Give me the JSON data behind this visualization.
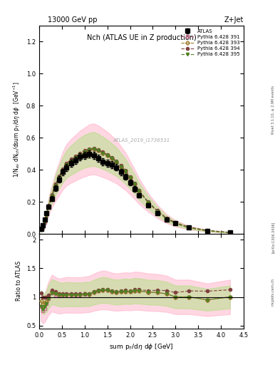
{
  "title_left": "13000 GeV pp",
  "title_right": "Z+Jet",
  "plot_title": "Nch (ATLAS UE in Z production)",
  "xlabel": "sum p_{T}/dη dϕ [GeV]",
  "ylabel": "1/N_{ev} dN_{ch}/dsum p_{T}/dη dϕ  [GeV⁻¹]",
  "ylabel_ratio": "Ratio to ATLAS",
  "watermark": "ATLAS_2019_I1736531",
  "rivet_label": "Rivet 3.1.10, ≥ 2.9M events",
  "arxiv_label": "[arXiv:1306.3436]",
  "mcplots_label": "mcplots.cern.ch",
  "xlim": [
    0,
    4.5
  ],
  "ylim_main": [
    0,
    1.3
  ],
  "ylim_ratio": [
    0.45,
    2.1
  ],
  "atlas_x": [
    0.04,
    0.08,
    0.12,
    0.16,
    0.2,
    0.28,
    0.36,
    0.44,
    0.52,
    0.6,
    0.7,
    0.8,
    0.9,
    1.0,
    1.1,
    1.2,
    1.3,
    1.4,
    1.5,
    1.6,
    1.7,
    1.8,
    1.9,
    2.0,
    2.1,
    2.2,
    2.4,
    2.6,
    2.8,
    3.0,
    3.3,
    3.7,
    4.2
  ],
  "atlas_y": [
    0.03,
    0.055,
    0.09,
    0.13,
    0.17,
    0.22,
    0.285,
    0.34,
    0.385,
    0.415,
    0.44,
    0.46,
    0.48,
    0.49,
    0.5,
    0.49,
    0.47,
    0.45,
    0.44,
    0.43,
    0.415,
    0.385,
    0.355,
    0.32,
    0.28,
    0.24,
    0.18,
    0.13,
    0.09,
    0.065,
    0.038,
    0.02,
    0.008
  ],
  "atlas_yerr": [
    0.003,
    0.005,
    0.007,
    0.01,
    0.012,
    0.015,
    0.018,
    0.02,
    0.022,
    0.022,
    0.022,
    0.022,
    0.022,
    0.022,
    0.022,
    0.022,
    0.022,
    0.022,
    0.022,
    0.022,
    0.02,
    0.02,
    0.018,
    0.018,
    0.016,
    0.014,
    0.012,
    0.01,
    0.008,
    0.006,
    0.004,
    0.003,
    0.002
  ],
  "py391_x": [
    0.04,
    0.08,
    0.12,
    0.16,
    0.2,
    0.28,
    0.36,
    0.44,
    0.52,
    0.6,
    0.7,
    0.8,
    0.9,
    1.0,
    1.1,
    1.2,
    1.3,
    1.4,
    1.5,
    1.6,
    1.7,
    1.8,
    1.9,
    2.0,
    2.1,
    2.2,
    2.4,
    2.6,
    2.8,
    3.0,
    3.3,
    3.7,
    4.2
  ],
  "py391_y": [
    0.025,
    0.042,
    0.072,
    0.115,
    0.165,
    0.235,
    0.295,
    0.345,
    0.395,
    0.43,
    0.455,
    0.475,
    0.495,
    0.51,
    0.525,
    0.53,
    0.52,
    0.505,
    0.49,
    0.47,
    0.45,
    0.42,
    0.39,
    0.35,
    0.31,
    0.265,
    0.195,
    0.14,
    0.095,
    0.065,
    0.038,
    0.019,
    0.008
  ],
  "py393_x": [
    0.04,
    0.08,
    0.12,
    0.16,
    0.2,
    0.28,
    0.36,
    0.44,
    0.52,
    0.6,
    0.7,
    0.8,
    0.9,
    1.0,
    1.1,
    1.2,
    1.3,
    1.4,
    1.5,
    1.6,
    1.7,
    1.8,
    1.9,
    2.0,
    2.1,
    2.2,
    2.4,
    2.6,
    2.8,
    3.0,
    3.3,
    3.7,
    4.2
  ],
  "py393_y": [
    0.028,
    0.048,
    0.08,
    0.12,
    0.17,
    0.24,
    0.305,
    0.355,
    0.4,
    0.435,
    0.46,
    0.48,
    0.5,
    0.515,
    0.525,
    0.53,
    0.52,
    0.505,
    0.49,
    0.47,
    0.45,
    0.42,
    0.39,
    0.35,
    0.31,
    0.265,
    0.195,
    0.14,
    0.095,
    0.065,
    0.038,
    0.019,
    0.008
  ],
  "py394_x": [
    0.04,
    0.08,
    0.12,
    0.16,
    0.2,
    0.28,
    0.36,
    0.44,
    0.52,
    0.6,
    0.7,
    0.8,
    0.9,
    1.0,
    1.1,
    1.2,
    1.3,
    1.4,
    1.5,
    1.6,
    1.7,
    1.8,
    1.9,
    2.0,
    2.1,
    2.2,
    2.4,
    2.6,
    2.8,
    3.0,
    3.3,
    3.7,
    4.2
  ],
  "py394_y": [
    0.032,
    0.055,
    0.09,
    0.13,
    0.175,
    0.245,
    0.31,
    0.36,
    0.405,
    0.44,
    0.465,
    0.485,
    0.505,
    0.52,
    0.53,
    0.535,
    0.525,
    0.51,
    0.495,
    0.475,
    0.455,
    0.425,
    0.395,
    0.355,
    0.315,
    0.27,
    0.2,
    0.145,
    0.1,
    0.07,
    0.042,
    0.022,
    0.009
  ],
  "py395_x": [
    0.04,
    0.08,
    0.12,
    0.16,
    0.2,
    0.28,
    0.36,
    0.44,
    0.52,
    0.6,
    0.7,
    0.8,
    0.9,
    1.0,
    1.1,
    1.2,
    1.3,
    1.4,
    1.5,
    1.6,
    1.7,
    1.8,
    1.9,
    2.0,
    2.1,
    2.2,
    2.4,
    2.6,
    2.8,
    3.0,
    3.3,
    3.7,
    4.2
  ],
  "py395_y": [
    0.025,
    0.043,
    0.075,
    0.115,
    0.165,
    0.235,
    0.3,
    0.35,
    0.395,
    0.43,
    0.455,
    0.475,
    0.495,
    0.51,
    0.525,
    0.53,
    0.52,
    0.505,
    0.49,
    0.47,
    0.45,
    0.42,
    0.39,
    0.35,
    0.31,
    0.265,
    0.195,
    0.14,
    0.095,
    0.065,
    0.038,
    0.019,
    0.008
  ],
  "color_atlas": "#000000",
  "color_391": "#c87090",
  "color_393": "#a08030",
  "color_394": "#804040",
  "color_395": "#508020",
  "band_391_color": "#ffb0c8",
  "band_393_color": "#e8d070",
  "band_391_alpha": 0.5,
  "band_393_alpha": 0.5,
  "legend_entries": [
    "ATLAS",
    "Pythia 6.428 391",
    "Pythia 6.428 393",
    "Pythia 6.428 394",
    "Pythia 6.428 395"
  ]
}
